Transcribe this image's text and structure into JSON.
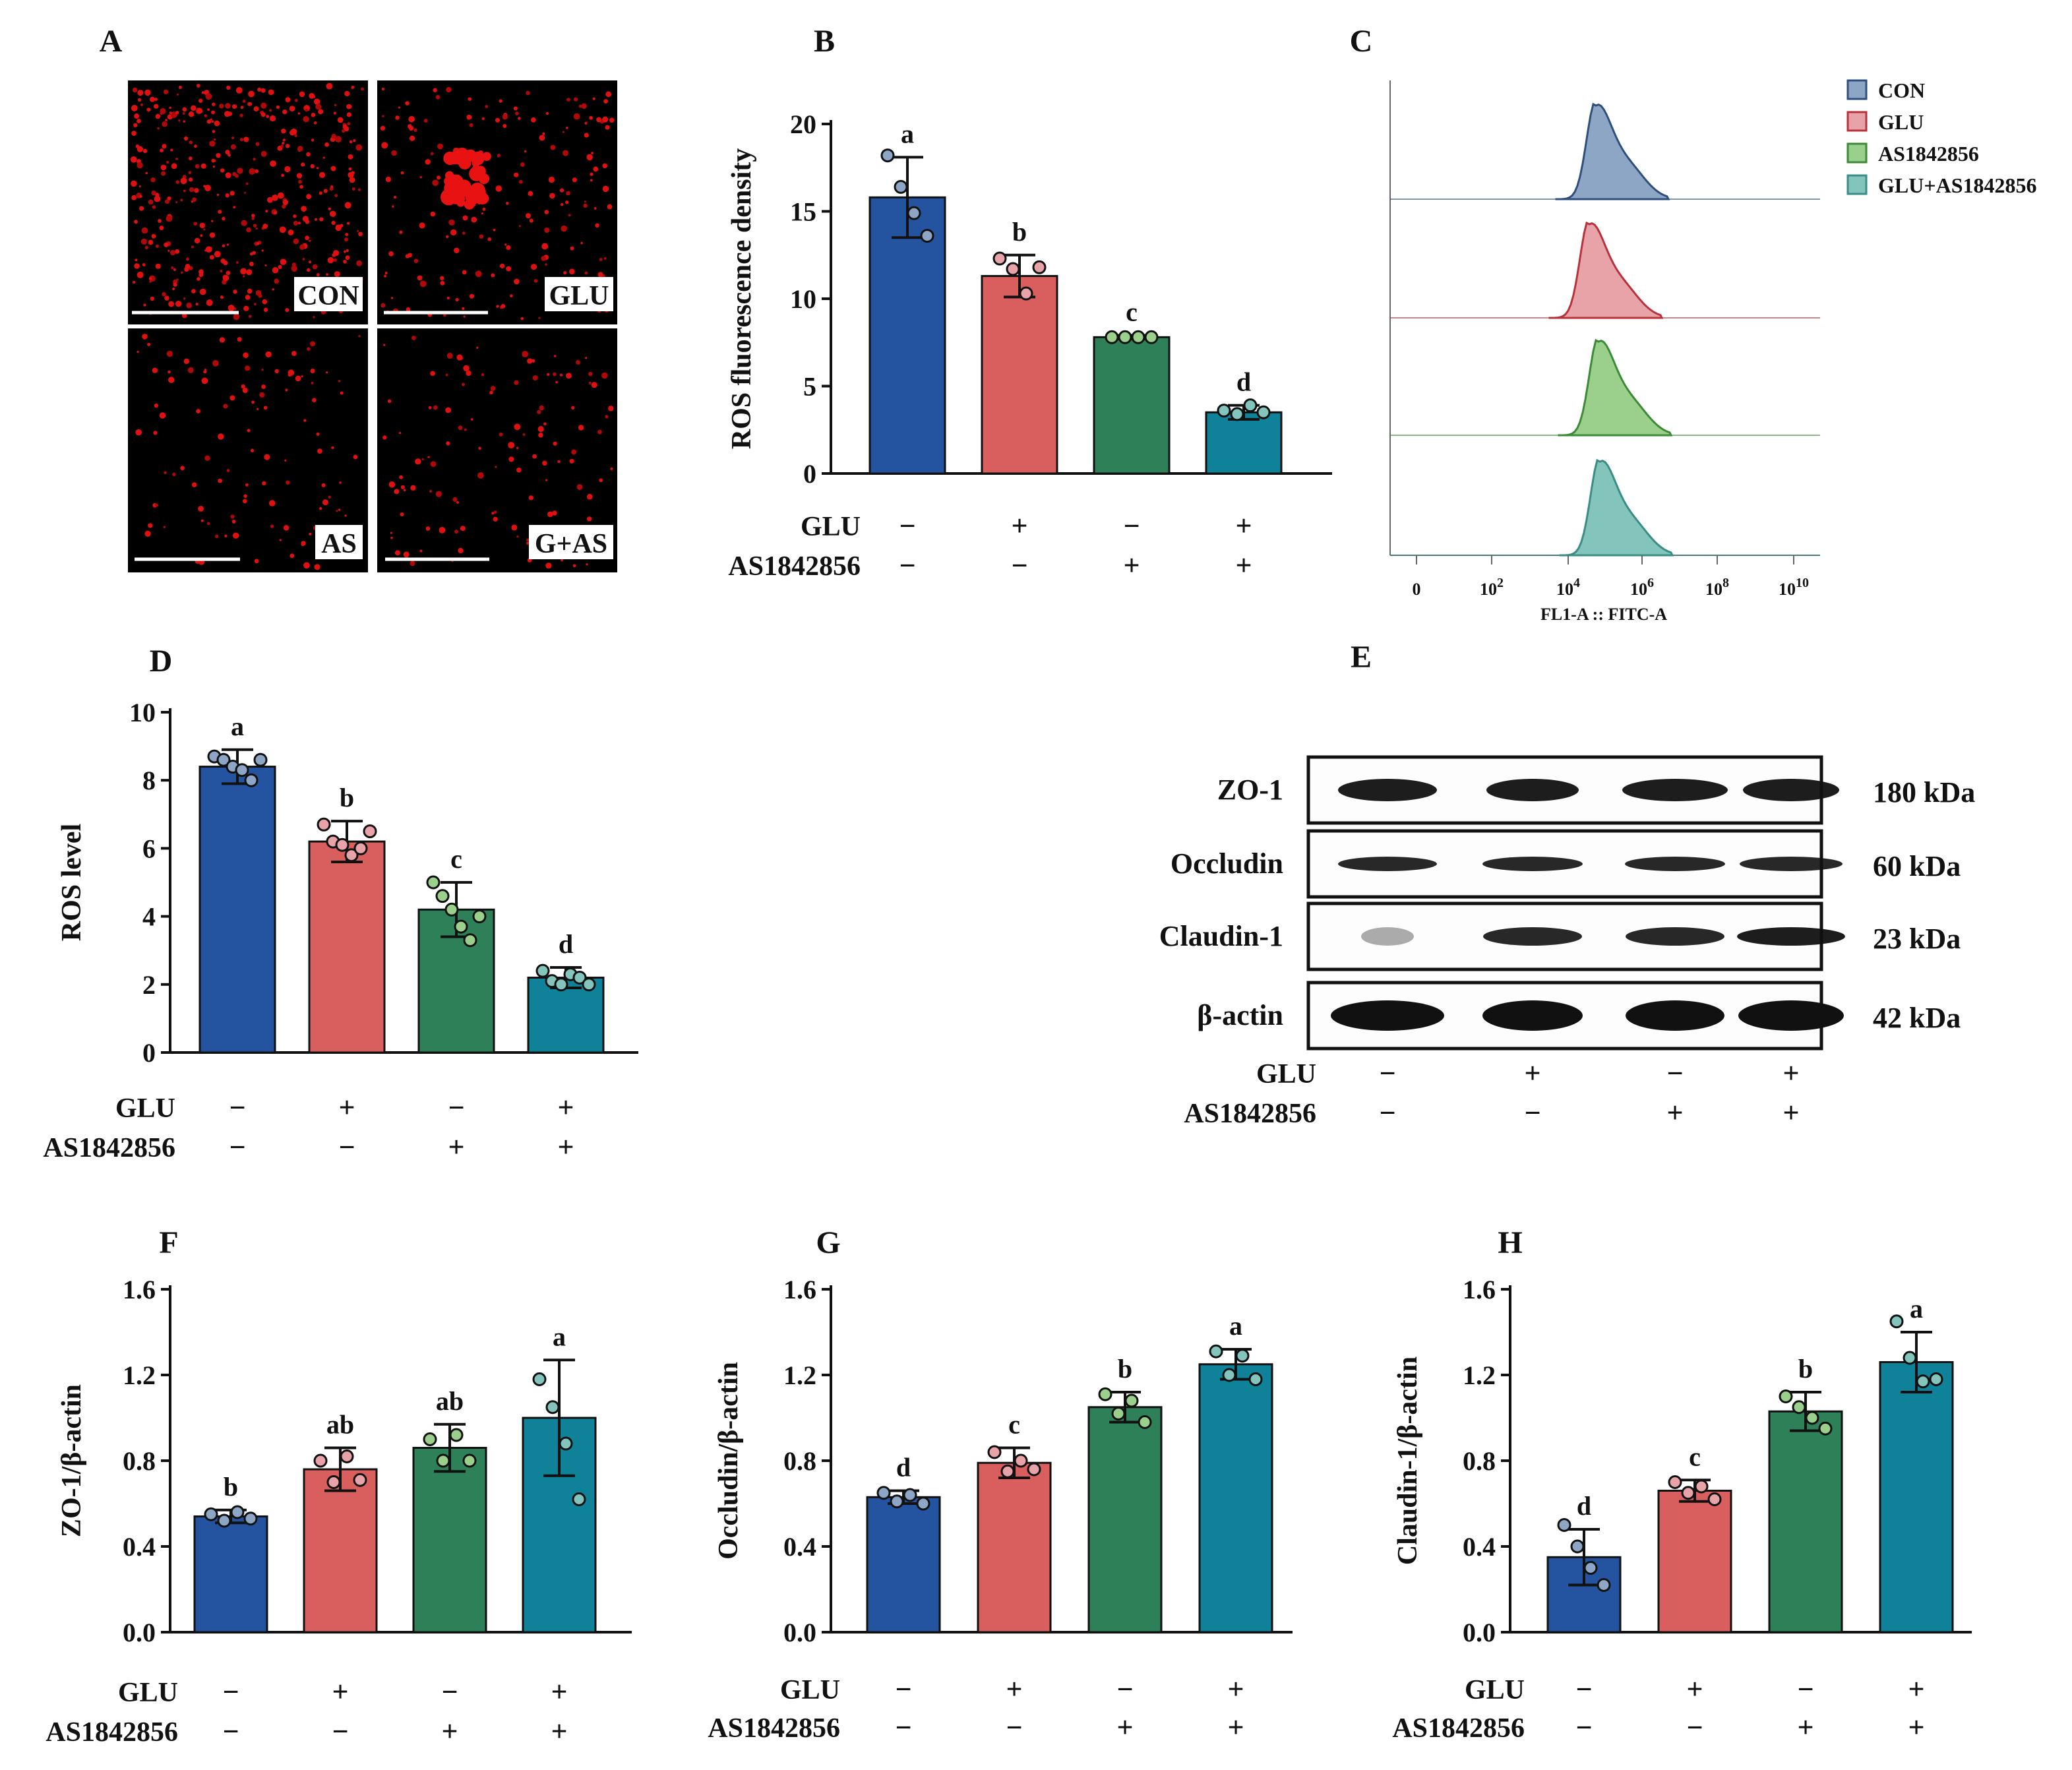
{
  "colors": {
    "CON": "#2453a0",
    "GLU": "#d95f5f",
    "AS": "#2e8059",
    "GAS": "#0f8198",
    "CON_fc": "#8da6c6",
    "GLU_fc": "#e7a3a8",
    "AS_fc": "#9bd08c",
    "GAS_fc": "#83c4bd",
    "CON_ln": "#2e4e7c",
    "GLU_ln": "#b8323c",
    "AS_ln": "#3b8a36",
    "GAS_ln": "#3a8d84"
  },
  "treatments": {
    "row1_label": "GLU",
    "row2_label": "AS1842856",
    "row1": [
      "−",
      "+",
      "−",
      "+"
    ],
    "row2": [
      "−",
      "−",
      "+",
      "+"
    ]
  },
  "panels": {
    "A": {
      "label": "A",
      "images": [
        {
          "tag": "CON"
        },
        {
          "tag": "GLU"
        },
        {
          "tag": "AS"
        },
        {
          "tag": "G+AS"
        }
      ]
    },
    "C": {
      "label": "C",
      "xlabel": "FL1-A :: FITC-A",
      "xticks": [
        {
          "base": "0",
          "exp": ""
        },
        {
          "base": "10",
          "exp": "2"
        },
        {
          "base": "10",
          "exp": "4"
        },
        {
          "base": "10",
          "exp": "6"
        },
        {
          "base": "10",
          "exp": "8"
        },
        {
          "base": "10",
          "exp": "10"
        }
      ],
      "legend": [
        "CON",
        "GLU",
        "AS1842856",
        "GLU+AS1842856"
      ]
    },
    "E": {
      "label": "E",
      "bands": [
        {
          "name": "ZO-1",
          "kda": "180 kDa"
        },
        {
          "name": "Occludin",
          "kda": "60 kDa"
        },
        {
          "name": "Claudin-1",
          "kda": "23 kDa"
        },
        {
          "name": "β-actin",
          "kda": "42 kDa"
        }
      ]
    }
  },
  "chart_data": [
    {
      "id": "B",
      "panel_label": "B",
      "type": "bar",
      "ylabel": "ROS fluorescence density",
      "ylim": [
        0,
        20
      ],
      "yticks": [
        0,
        5,
        10,
        15,
        20
      ],
      "ytick_labels": [
        "0",
        "5",
        "10",
        "15",
        "20"
      ],
      "categories": [
        "CON",
        "GLU",
        "AS1842856",
        "GLU+AS1842856"
      ],
      "values": [
        15.8,
        11.3,
        7.8,
        3.5
      ],
      "errors": [
        2.3,
        1.2,
        0.1,
        0.4
      ],
      "letters": [
        "a",
        "b",
        "c",
        "d"
      ],
      "points": [
        [
          18.2,
          16.4,
          14.9,
          13.6
        ],
        [
          12.3,
          11.7,
          10.3,
          11.8
        ],
        [
          7.8,
          7.8,
          7.8,
          7.8
        ],
        [
          3.6,
          3.4,
          3.9,
          3.5
        ]
      ]
    },
    {
      "id": "D",
      "panel_label": "D",
      "type": "bar",
      "ylabel": "ROS level",
      "ylim": [
        0,
        10
      ],
      "yticks": [
        0,
        2,
        4,
        6,
        8,
        10
      ],
      "ytick_labels": [
        "0",
        "2",
        "4",
        "6",
        "8",
        "10"
      ],
      "categories": [
        "CON",
        "GLU",
        "AS1842856",
        "GLU+AS1842856"
      ],
      "values": [
        8.4,
        6.2,
        4.2,
        2.2
      ],
      "errors": [
        0.5,
        0.6,
        0.8,
        0.3
      ],
      "letters": [
        "a",
        "b",
        "c",
        "d"
      ],
      "points": [
        [
          8.7,
          8.6,
          8.4,
          8.3,
          8.0,
          8.6
        ],
        [
          6.7,
          6.2,
          6.1,
          5.8,
          6.0,
          6.5
        ],
        [
          5.0,
          4.6,
          4.2,
          3.7,
          3.3,
          4.0
        ],
        [
          2.4,
          2.1,
          2.0,
          2.3,
          2.2,
          2.0
        ]
      ]
    },
    {
      "id": "F",
      "panel_label": "F",
      "type": "bar",
      "ylabel": "ZO-1/β-actin",
      "ylim": [
        0,
        1.6
      ],
      "yticks": [
        0,
        0.4,
        0.8,
        1.2,
        1.6
      ],
      "ytick_labels": [
        "0.0",
        "0.4",
        "0.8",
        "1.2",
        "1.6"
      ],
      "categories": [
        "CON",
        "GLU",
        "AS1842856",
        "GLU+AS1842856"
      ],
      "values": [
        0.54,
        0.76,
        0.86,
        1.0
      ],
      "errors": [
        0.03,
        0.1,
        0.11,
        0.27
      ],
      "letters": [
        "b",
        "ab",
        "ab",
        "a"
      ],
      "points": [
        [
          0.55,
          0.52,
          0.56,
          0.53
        ],
        [
          0.8,
          0.7,
          0.82,
          0.71
        ],
        [
          0.9,
          0.8,
          0.92,
          0.8
        ],
        [
          1.18,
          1.05,
          0.88,
          0.62
        ]
      ]
    },
    {
      "id": "G",
      "panel_label": "G",
      "type": "bar",
      "ylabel": "Occludin/β-actin",
      "ylim": [
        0,
        1.6
      ],
      "yticks": [
        0,
        0.4,
        0.8,
        1.2,
        1.6
      ],
      "ytick_labels": [
        "0.0",
        "0.4",
        "0.8",
        "1.2",
        "1.6"
      ],
      "categories": [
        "CON",
        "GLU",
        "AS1842856",
        "GLU+AS1842856"
      ],
      "values": [
        0.63,
        0.79,
        1.05,
        1.25
      ],
      "errors": [
        0.03,
        0.07,
        0.07,
        0.07
      ],
      "letters": [
        "d",
        "c",
        "b",
        "a"
      ],
      "points": [
        [
          0.65,
          0.61,
          0.64,
          0.6
        ],
        [
          0.84,
          0.75,
          0.8,
          0.76
        ],
        [
          1.11,
          1.02,
          1.08,
          0.98
        ],
        [
          1.31,
          1.2,
          1.29,
          1.18
        ]
      ]
    },
    {
      "id": "H",
      "panel_label": "H",
      "type": "bar",
      "ylabel": "Claudin-1/β-actin",
      "ylim": [
        0,
        1.6
      ],
      "yticks": [
        0,
        0.4,
        0.8,
        1.2,
        1.6
      ],
      "ytick_labels": [
        "0.0",
        "0.4",
        "0.8",
        "1.2",
        "1.6"
      ],
      "categories": [
        "CON",
        "GLU",
        "AS1842856",
        "GLU+AS1842856"
      ],
      "values": [
        0.35,
        0.66,
        1.03,
        1.26
      ],
      "errors": [
        0.13,
        0.05,
        0.09,
        0.14
      ],
      "letters": [
        "d",
        "c",
        "b",
        "a"
      ],
      "points": [
        [
          0.5,
          0.4,
          0.3,
          0.22
        ],
        [
          0.7,
          0.65,
          0.68,
          0.62
        ],
        [
          1.1,
          1.05,
          1.0,
          0.95
        ],
        [
          1.45,
          1.28,
          1.17,
          1.18
        ]
      ]
    }
  ]
}
